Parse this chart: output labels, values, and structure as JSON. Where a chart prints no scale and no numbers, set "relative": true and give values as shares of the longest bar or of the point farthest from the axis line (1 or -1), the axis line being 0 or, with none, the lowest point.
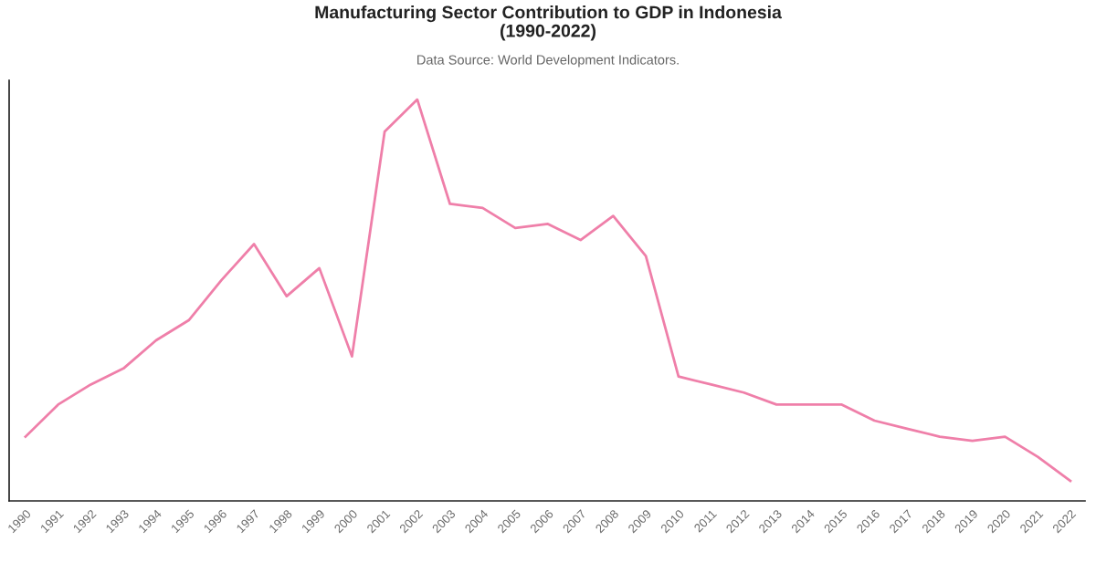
{
  "chart_data": {
    "type": "line",
    "title": "Manufacturing Sector Contribution to GDP in Indonesia\n(1990-2022)",
    "subtitle": "Data Source: World Development Indicators.",
    "categories": [
      "1990",
      "1991",
      "1992",
      "1993",
      "1994",
      "1995",
      "1996",
      "1997",
      "1998",
      "1999",
      "2000",
      "2001",
      "2002",
      "2003",
      "2004",
      "2005",
      "2006",
      "2007",
      "2008",
      "2009",
      "2010",
      "2011",
      "2012",
      "2013",
      "2014",
      "2015",
      "2016",
      "2017",
      "2018",
      "2019",
      "2020",
      "2021",
      "2022"
    ],
    "series": [
      {
        "color": "#ef7fa9",
        "values": [
          0.16,
          0.24,
          0.29,
          0.33,
          0.4,
          0.45,
          0.55,
          0.64,
          0.51,
          0.58,
          0.36,
          0.92,
          1.0,
          0.74,
          0.73,
          0.68,
          0.69,
          0.65,
          0.71,
          0.61,
          0.31,
          0.29,
          0.27,
          0.24,
          0.24,
          0.24,
          0.2,
          0.18,
          0.16,
          0.15,
          0.16,
          0.11,
          0.05
        ]
      }
    ],
    "relative": true,
    "grid": false,
    "marker": "none",
    "line_style": "solid",
    "tick_labels": "x"
  }
}
